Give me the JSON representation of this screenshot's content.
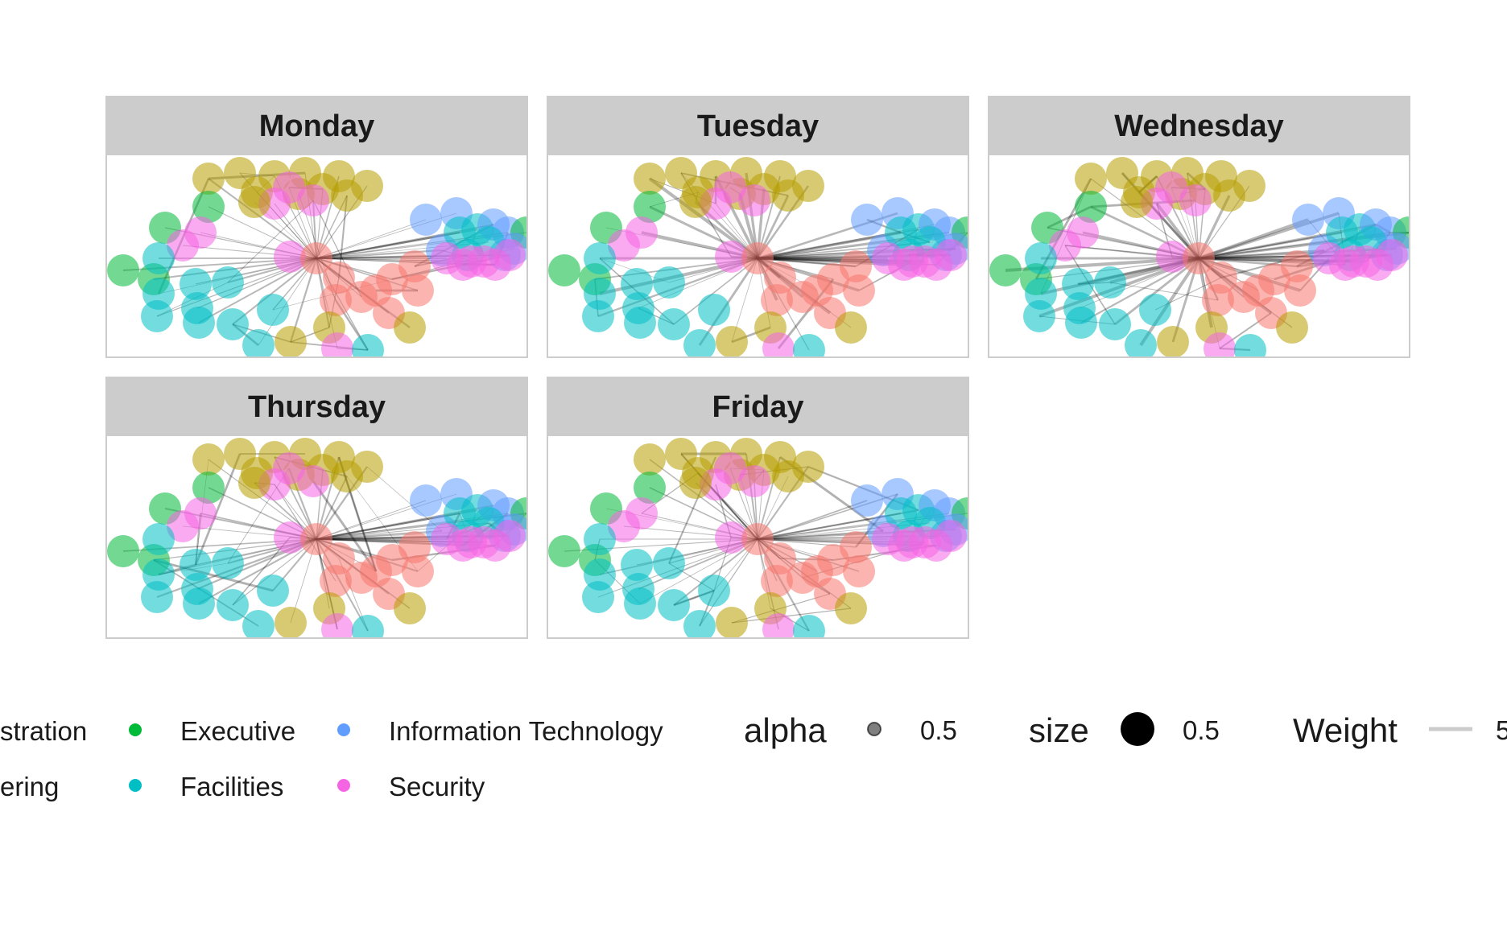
{
  "chart_data": {
    "type": "network-facets",
    "facets": [
      "Monday",
      "Tuesday",
      "Wednesday",
      "Thursday",
      "Friday"
    ],
    "departments": [
      {
        "name": "Administration",
        "label": "stration",
        "color": "#F8766D"
      },
      {
        "name": "Engineering",
        "label": "ering",
        "color": "#B79F00"
      },
      {
        "name": "Executive",
        "label": "Executive",
        "color": "#00BA38"
      },
      {
        "name": "Facilities",
        "label": "Facilities",
        "color": "#00BFC4"
      },
      {
        "name": "Information Technology",
        "label": "Information Technology",
        "color": "#619CFF"
      },
      {
        "name": "Security",
        "label": "Security",
        "color": "#F564E3"
      }
    ],
    "legend": {
      "alpha": {
        "title": "alpha",
        "value": "0.5"
      },
      "size": {
        "title": "size",
        "value": "0.5"
      },
      "weight": {
        "title": "Weight",
        "value": "5"
      }
    }
  }
}
